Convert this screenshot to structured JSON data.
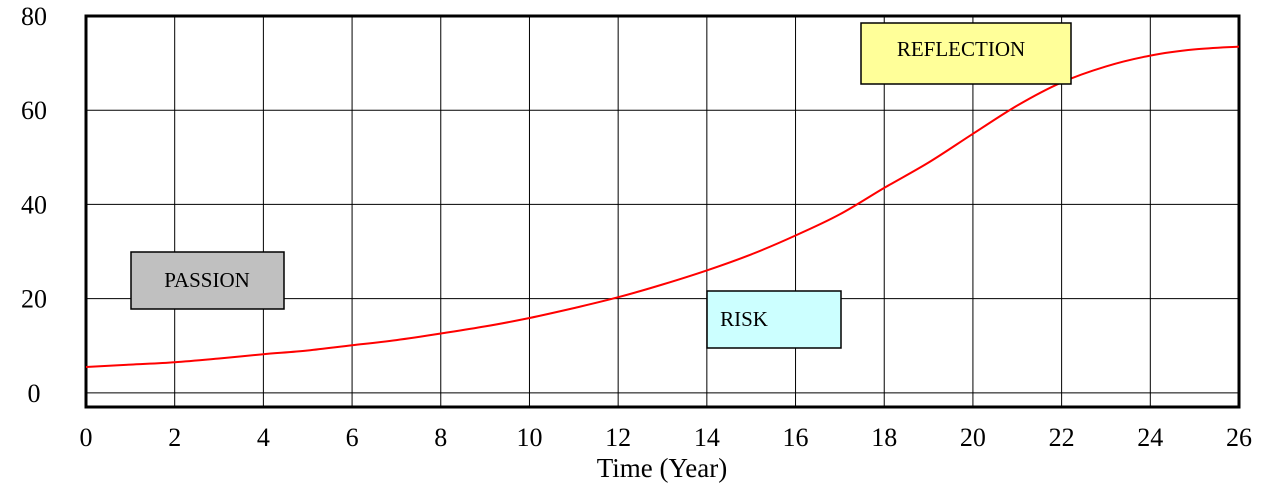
{
  "chart_data": {
    "type": "line",
    "title": "",
    "xlabel": "Time (Year)",
    "ylabel": "",
    "xlim": [
      0,
      26
    ],
    "ylim": [
      -3,
      80
    ],
    "x_ticks": [
      0,
      2,
      4,
      6,
      8,
      10,
      12,
      14,
      16,
      18,
      20,
      22,
      24,
      26
    ],
    "y_ticks": [
      0,
      20,
      40,
      60,
      80
    ],
    "grid": true,
    "series": [
      {
        "color": "#ff0000",
        "x": [
          0,
          1,
          2,
          3,
          4,
          5,
          6,
          7,
          8,
          9,
          10,
          11,
          12,
          13,
          14,
          15,
          16,
          17,
          18,
          19,
          20,
          21,
          22,
          23,
          24,
          25,
          26
        ],
        "y": [
          5.5,
          6.0,
          6.5,
          7.3,
          8.2,
          9.0,
          10.1,
          11.2,
          12.6,
          14.1,
          15.9,
          18.0,
          20.3,
          23.0,
          26.0,
          29.4,
          33.4,
          37.9,
          43.5,
          48.9,
          55.0,
          61.0,
          65.9,
          69.3,
          71.6,
          72.9,
          73.5
        ]
      }
    ],
    "annotations": [
      {
        "label": "PASSION",
        "color": "#c0c0c0"
      },
      {
        "label": "RISK",
        "color": "#ccffff"
      },
      {
        "label": "REFLECTION",
        "color": "#ffff99"
      }
    ]
  }
}
